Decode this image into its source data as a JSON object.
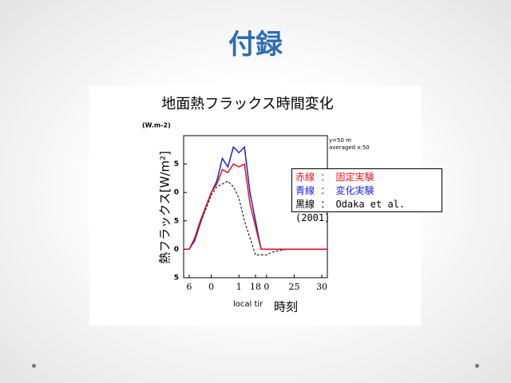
{
  "slide_title": "付録",
  "chart_data": {
    "type": "line",
    "title": "地面熱フラックス時間変化",
    "unit_label": "(W.m-2)",
    "y_label": "熱フラックス[W/m²]",
    "x_label": "local tir",
    "x_label_overlay": "時刻",
    "annotations": [
      "y=50 m",
      "averaged   x:50"
    ],
    "x": [
      5,
      6,
      7,
      8,
      9,
      10,
      11,
      12,
      13,
      14,
      15,
      16,
      17,
      18,
      19,
      20,
      21,
      22,
      23,
      24,
      25,
      26,
      27,
      28,
      29,
      30,
      31
    ],
    "xlim": [
      5,
      31
    ],
    "xticks": [
      {
        "value": 6,
        "label": "6"
      },
      {
        "value": 10,
        "label": "0"
      },
      {
        "value": 15,
        "label": "1"
      },
      18,
      {
        "value": 20,
        "label": "0"
      },
      25,
      30
    ],
    "ylim": [
      -5,
      20
    ],
    "yticks": [
      {
        "value": -5,
        "label": "5"
      },
      0,
      {
        "value": 5,
        "label": "5"
      },
      {
        "value": 10,
        "label": "0"
      },
      {
        "value": 15,
        "label": "5"
      }
    ],
    "series": [
      {
        "name": "赤線 ： 固定実験",
        "color": "#e8141b",
        "dash": false,
        "values": [
          0,
          0,
          2,
          5,
          7.5,
          10,
          11.5,
          14,
          13.5,
          15,
          14.5,
          15,
          8,
          4,
          0,
          0,
          0,
          0,
          0,
          0,
          0,
          0,
          0,
          0,
          0,
          0,
          0
        ]
      },
      {
        "name": "青線 ： 変化実験",
        "color": "#1a22e0",
        "dash": false,
        "values": [
          0,
          0,
          1.5,
          4.5,
          7.5,
          10,
          12,
          16,
          14.5,
          18,
          17,
          18,
          10,
          5,
          0,
          0,
          0,
          0,
          0,
          0,
          0,
          0,
          0,
          0,
          0,
          0,
          0
        ]
      },
      {
        "name": "黒線 ： Odaka et al.(2001)",
        "color": "#000000",
        "dash": true,
        "values": [
          0,
          0,
          2,
          4.5,
          7,
          9.5,
          11,
          11.5,
          12,
          11,
          9,
          5,
          2,
          -1,
          -1,
          -1,
          -0.5,
          -0.3,
          -0.1,
          0,
          0,
          0,
          0,
          0,
          0,
          0,
          0
        ]
      }
    ]
  }
}
